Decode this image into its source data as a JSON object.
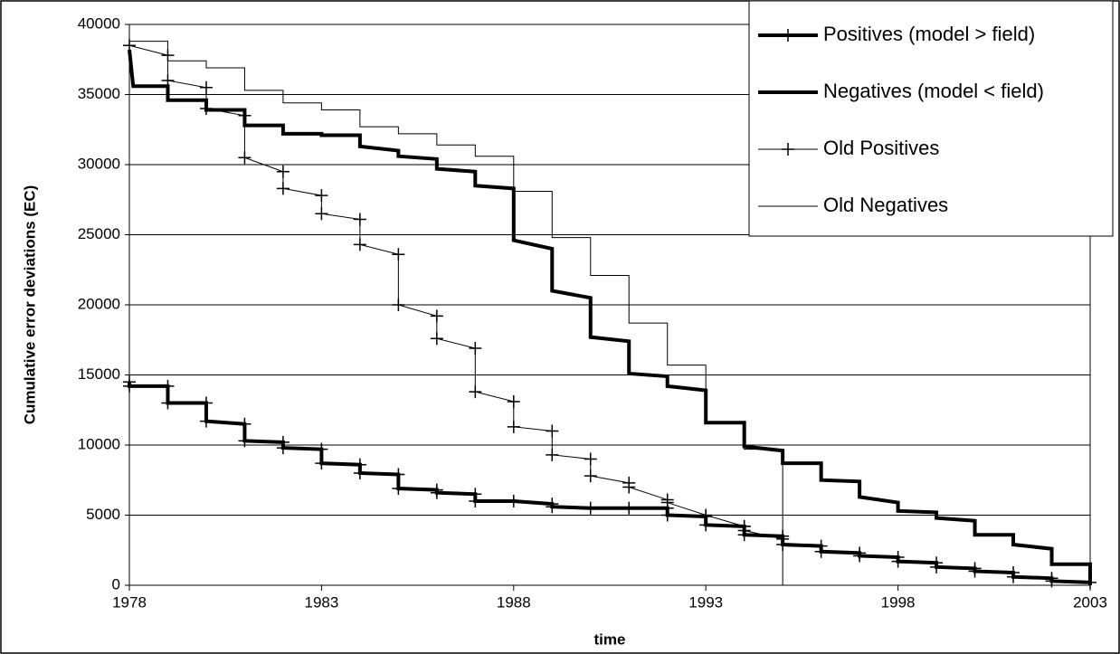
{
  "chart_data": {
    "type": "line",
    "x_label": "time",
    "y_label": "Cumulative error deviations (EC)",
    "xlim": [
      1978,
      2003
    ],
    "xticks": [
      1978,
      1983,
      1988,
      1993,
      1998,
      2003
    ],
    "ylim": [
      0,
      40000
    ],
    "yticks": [
      0,
      5000,
      10000,
      15000,
      20000,
      25000,
      30000,
      35000,
      40000
    ],
    "grid": true,
    "legend": "upper right",
    "series": [
      {
        "name": "Positives (model > field)",
        "color": "#000000",
        "line_width": 4,
        "marker": "+",
        "x": [
          1978,
          1978,
          1979,
          1979,
          1980,
          1980,
          1981,
          1981,
          1982,
          1982,
          1983,
          1983,
          1984,
          1984,
          1985,
          1985,
          1986,
          1986,
          1987,
          1987,
          1988,
          1989,
          1989,
          1990,
          1991,
          1992,
          1992,
          1993,
          1993,
          1994,
          1994,
          1995,
          1995,
          1996,
          1996,
          1997,
          1997,
          1998,
          1998,
          1999,
          1999,
          2000,
          2000,
          2001,
          2001,
          2002,
          2002,
          2003
        ],
        "values": [
          14500,
          14200,
          14200,
          13000,
          13000,
          11700,
          11500,
          10300,
          10200,
          9800,
          9700,
          8700,
          8600,
          8000,
          7900,
          6900,
          6800,
          6600,
          6500,
          6000,
          6000,
          5800,
          5600,
          5500,
          5500,
          5500,
          5000,
          4900,
          4300,
          4200,
          3600,
          3500,
          2900,
          2800,
          2400,
          2300,
          2100,
          2000,
          1700,
          1600,
          1300,
          1200,
          1000,
          900,
          600,
          500,
          300,
          200
        ]
      },
      {
        "name": "Negatives (model < field)",
        "color": "#000000",
        "line_width": 4,
        "marker": "none",
        "x": [
          1978,
          1978.1,
          1979,
          1979,
          1980,
          1980,
          1981,
          1981,
          1982,
          1982,
          1983,
          1983,
          1984,
          1984,
          1985,
          1985,
          1986,
          1986,
          1987,
          1987,
          1988,
          1988,
          1989,
          1989,
          1990,
          1990,
          1991,
          1991,
          1992,
          1992,
          1993,
          1993,
          1994,
          1994,
          1995,
          1995,
          1996,
          1996,
          1997,
          1997,
          1998,
          1998,
          1999,
          1999,
          2000,
          2000,
          2001,
          2001,
          2002,
          2002,
          2003,
          2003
        ],
        "values": [
          38200,
          35600,
          35600,
          34600,
          34600,
          33900,
          33900,
          32800,
          32800,
          32200,
          32200,
          32100,
          32100,
          31300,
          31000,
          30600,
          30400,
          29700,
          29500,
          28500,
          28300,
          24600,
          24000,
          21000,
          20500,
          17700,
          17400,
          15100,
          14900,
          14200,
          13900,
          11600,
          11600,
          9900,
          9600,
          8700,
          8700,
          7500,
          7400,
          6300,
          5900,
          5300,
          5200,
          4800,
          4600,
          3600,
          3600,
          2900,
          2600,
          1500,
          1500,
          0
        ]
      },
      {
        "name": "Old Positives",
        "color": "#000000",
        "line_width": 1,
        "marker": "+",
        "x": [
          1978,
          1979,
          1979,
          1980,
          1980,
          1981,
          1981,
          1982,
          1982,
          1983,
          1983,
          1984,
          1984,
          1985,
          1985,
          1986,
          1986,
          1987,
          1987,
          1988,
          1988,
          1989,
          1989,
          1990,
          1990,
          1991,
          1991,
          1992,
          1992,
          1993,
          1994,
          1994,
          1995
        ],
        "values": [
          38500,
          37800,
          36000,
          35500,
          34000,
          33500,
          30500,
          29500,
          28300,
          27800,
          26500,
          26100,
          24300,
          23600,
          20000,
          19200,
          17600,
          16900,
          13800,
          13100,
          11300,
          11000,
          9300,
          9000,
          7800,
          7300,
          7000,
          6100,
          5900,
          5000,
          4200,
          3900,
          3300
        ]
      },
      {
        "name": "Old Negatives",
        "color": "#000000",
        "line_width": 1,
        "marker": "none",
        "x": [
          1978,
          1979,
          1979,
          1980,
          1980,
          1981,
          1981,
          1982,
          1982,
          1983,
          1983,
          1984,
          1984,
          1985,
          1985,
          1986,
          1986,
          1987,
          1987,
          1988,
          1988,
          1989,
          1989,
          1990,
          1990,
          1991,
          1991,
          1992,
          1992,
          1993,
          1993,
          1994,
          1994,
          1995,
          1995
        ],
        "values": [
          38800,
          38800,
          37400,
          37400,
          36900,
          36900,
          35300,
          35300,
          34400,
          34400,
          33900,
          33900,
          32700,
          32700,
          32200,
          32200,
          31400,
          31400,
          30600,
          30600,
          28100,
          28100,
          24800,
          24800,
          22100,
          22100,
          18700,
          18700,
          15700,
          15700,
          11600,
          11600,
          9700,
          9700,
          0
        ]
      }
    ]
  }
}
